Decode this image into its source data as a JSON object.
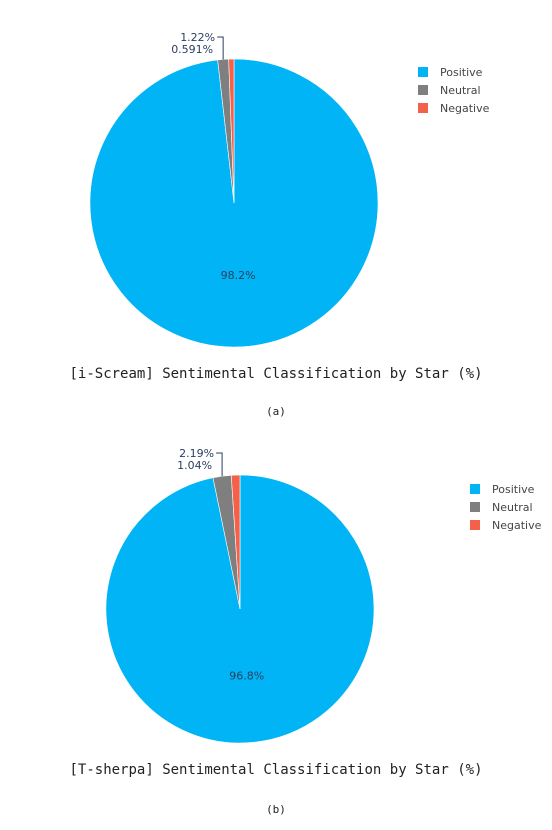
{
  "chart_data": [
    {
      "type": "pie",
      "title": "[i-Scream] Sentimental Classification by Star (%)",
      "caption": "(a)",
      "labels": [
        "Positive",
        "Neutral",
        "Negative"
      ],
      "values": [
        98.2,
        1.22,
        0.591
      ],
      "value_labels": [
        "98.2%",
        "1.22%",
        "0.591%"
      ],
      "colors": [
        "#00b4f5",
        "#7f7f7f",
        "#f4614a"
      ],
      "legend_position": "top-right"
    },
    {
      "type": "pie",
      "title": "[T-sherpa] Sentimental Classification by Star (%)",
      "caption": "(b)",
      "labels": [
        "Positive",
        "Neutral",
        "Negative"
      ],
      "values": [
        96.8,
        2.19,
        1.04
      ],
      "value_labels": [
        "96.8%",
        "2.19%",
        "1.04%"
      ],
      "colors": [
        "#00b4f5",
        "#7f7f7f",
        "#f4614a"
      ],
      "legend_position": "top-right"
    }
  ]
}
